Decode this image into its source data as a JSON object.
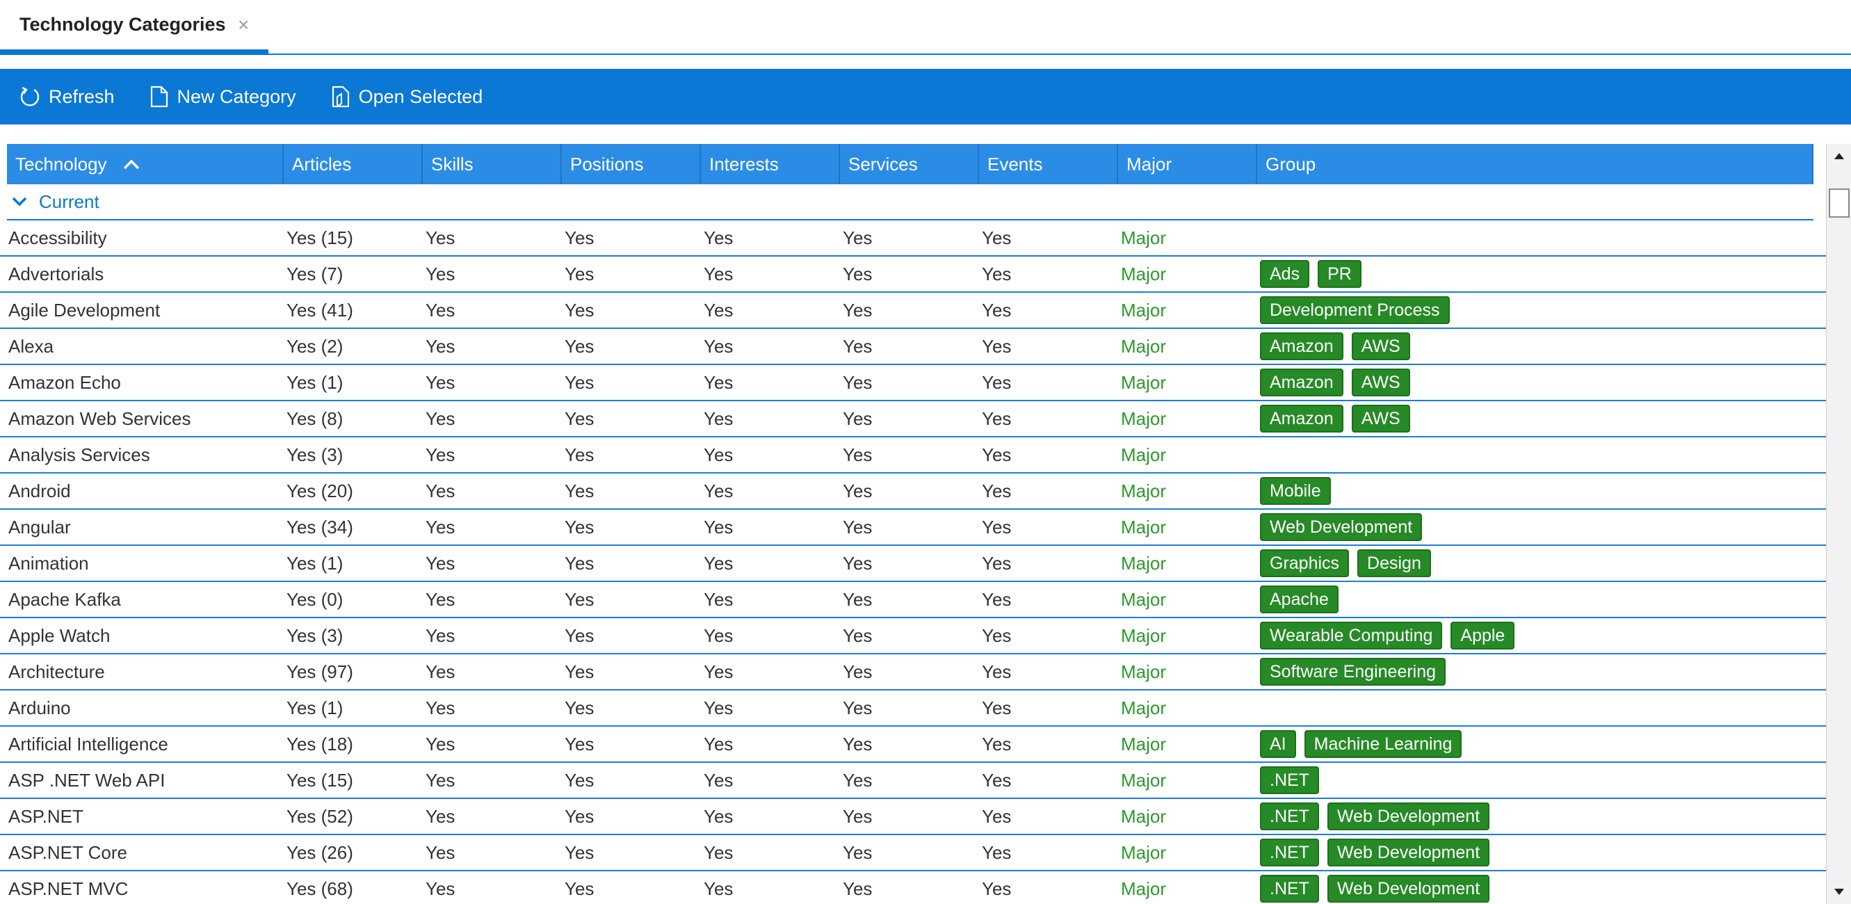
{
  "tab": {
    "title": "Technology Categories",
    "close": "×"
  },
  "toolbar": {
    "refresh_label": "Refresh",
    "new_label": "New Category",
    "open_label": "Open Selected"
  },
  "columns": [
    {
      "key": "technology",
      "label": "Technology"
    },
    {
      "key": "articles",
      "label": "Articles"
    },
    {
      "key": "skills",
      "label": "Skills"
    },
    {
      "key": "positions",
      "label": "Positions"
    },
    {
      "key": "interests",
      "label": "Interests"
    },
    {
      "key": "services",
      "label": "Services"
    },
    {
      "key": "events",
      "label": "Events"
    },
    {
      "key": "major",
      "label": "Major"
    },
    {
      "key": "group",
      "label": "Group"
    }
  ],
  "group_label": "Current",
  "colors": {
    "accent": "#0a78d4",
    "header": "#2b8ce6",
    "tag": "#268a26",
    "major": "#2b9a2b"
  },
  "rows": [
    {
      "technology": "Accessibility",
      "articles": "Yes (15)",
      "skills": "Yes",
      "positions": "Yes",
      "interests": "Yes",
      "services": "Yes",
      "events": "Yes",
      "major": "Major",
      "groups": []
    },
    {
      "technology": "Advertorials",
      "articles": "Yes (7)",
      "skills": "Yes",
      "positions": "Yes",
      "interests": "Yes",
      "services": "Yes",
      "events": "Yes",
      "major": "Major",
      "groups": [
        "Ads",
        "PR"
      ]
    },
    {
      "technology": "Agile Development",
      "articles": "Yes (41)",
      "skills": "Yes",
      "positions": "Yes",
      "interests": "Yes",
      "services": "Yes",
      "events": "Yes",
      "major": "Major",
      "groups": [
        "Development Process"
      ]
    },
    {
      "technology": "Alexa",
      "articles": "Yes (2)",
      "skills": "Yes",
      "positions": "Yes",
      "interests": "Yes",
      "services": "Yes",
      "events": "Yes",
      "major": "Major",
      "groups": [
        "Amazon",
        "AWS"
      ]
    },
    {
      "technology": "Amazon Echo",
      "articles": "Yes (1)",
      "skills": "Yes",
      "positions": "Yes",
      "interests": "Yes",
      "services": "Yes",
      "events": "Yes",
      "major": "Major",
      "groups": [
        "Amazon",
        "AWS"
      ]
    },
    {
      "technology": "Amazon Web Services",
      "articles": "Yes (8)",
      "skills": "Yes",
      "positions": "Yes",
      "interests": "Yes",
      "services": "Yes",
      "events": "Yes",
      "major": "Major",
      "groups": [
        "Amazon",
        "AWS"
      ]
    },
    {
      "technology": "Analysis Services",
      "articles": "Yes (3)",
      "skills": "Yes",
      "positions": "Yes",
      "interests": "Yes",
      "services": "Yes",
      "events": "Yes",
      "major": "Major",
      "groups": []
    },
    {
      "technology": "Android",
      "articles": "Yes (20)",
      "skills": "Yes",
      "positions": "Yes",
      "interests": "Yes",
      "services": "Yes",
      "events": "Yes",
      "major": "Major",
      "groups": [
        "Mobile"
      ]
    },
    {
      "technology": "Angular",
      "articles": "Yes (34)",
      "skills": "Yes",
      "positions": "Yes",
      "interests": "Yes",
      "services": "Yes",
      "events": "Yes",
      "major": "Major",
      "groups": [
        "Web Development"
      ]
    },
    {
      "technology": "Animation",
      "articles": "Yes (1)",
      "skills": "Yes",
      "positions": "Yes",
      "interests": "Yes",
      "services": "Yes",
      "events": "Yes",
      "major": "Major",
      "groups": [
        "Graphics",
        "Design"
      ]
    },
    {
      "technology": "Apache Kafka",
      "articles": "Yes (0)",
      "skills": "Yes",
      "positions": "Yes",
      "interests": "Yes",
      "services": "Yes",
      "events": "Yes",
      "major": "Major",
      "groups": [
        "Apache"
      ]
    },
    {
      "technology": "Apple Watch",
      "articles": "Yes (3)",
      "skills": "Yes",
      "positions": "Yes",
      "interests": "Yes",
      "services": "Yes",
      "events": "Yes",
      "major": "Major",
      "groups": [
        "Wearable Computing",
        "Apple"
      ]
    },
    {
      "technology": "Architecture",
      "articles": "Yes (97)",
      "skills": "Yes",
      "positions": "Yes",
      "interests": "Yes",
      "services": "Yes",
      "events": "Yes",
      "major": "Major",
      "groups": [
        "Software Engineering"
      ]
    },
    {
      "technology": "Arduino",
      "articles": "Yes (1)",
      "skills": "Yes",
      "positions": "Yes",
      "interests": "Yes",
      "services": "Yes",
      "events": "Yes",
      "major": "Major",
      "groups": []
    },
    {
      "technology": "Artificial Intelligence",
      "articles": "Yes (18)",
      "skills": "Yes",
      "positions": "Yes",
      "interests": "Yes",
      "services": "Yes",
      "events": "Yes",
      "major": "Major",
      "groups": [
        "AI",
        "Machine Learning"
      ]
    },
    {
      "technology": "ASP .NET Web API",
      "articles": "Yes (15)",
      "skills": "Yes",
      "positions": "Yes",
      "interests": "Yes",
      "services": "Yes",
      "events": "Yes",
      "major": "Major",
      "groups": [
        ".NET"
      ]
    },
    {
      "technology": "ASP.NET",
      "articles": "Yes (52)",
      "skills": "Yes",
      "positions": "Yes",
      "interests": "Yes",
      "services": "Yes",
      "events": "Yes",
      "major": "Major",
      "groups": [
        ".NET",
        "Web Development"
      ]
    },
    {
      "technology": "ASP.NET Core",
      "articles": "Yes (26)",
      "skills": "Yes",
      "positions": "Yes",
      "interests": "Yes",
      "services": "Yes",
      "events": "Yes",
      "major": "Major",
      "groups": [
        ".NET",
        "Web Development"
      ]
    },
    {
      "technology": "ASP.NET MVC",
      "articles": "Yes (68)",
      "skills": "Yes",
      "positions": "Yes",
      "interests": "Yes",
      "services": "Yes",
      "events": "Yes",
      "major": "Major",
      "groups": [
        ".NET",
        "Web Development"
      ]
    }
  ]
}
